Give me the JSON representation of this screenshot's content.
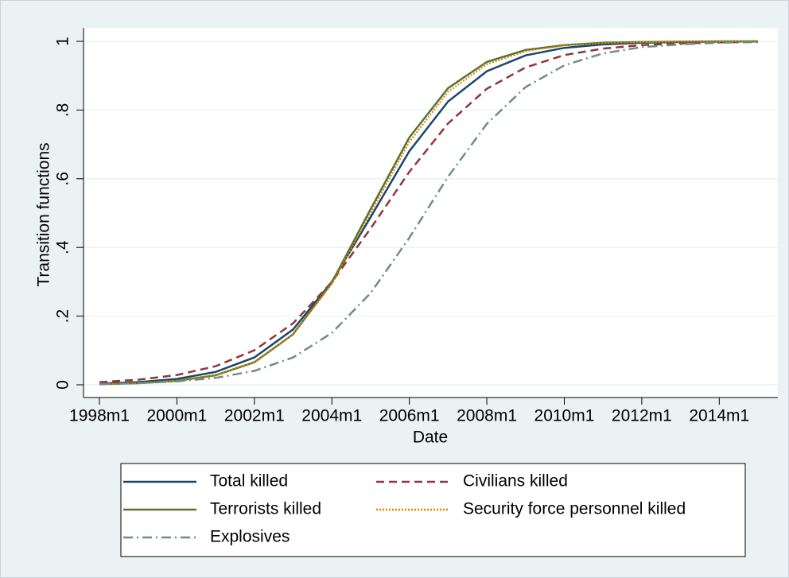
{
  "chart_data": {
    "type": "line",
    "xlabel": "Date",
    "ylabel": "Transition functions",
    "x": [
      1998,
      1999,
      2000,
      2001,
      2002,
      2003,
      2004,
      2005,
      2006,
      2007,
      2008,
      2009,
      2010,
      2011,
      2012,
      2013,
      2014,
      2015
    ],
    "series": [
      {
        "name": "Total killed",
        "color": "#1a476f",
        "style": "solid",
        "values": [
          0.0035,
          0.0078,
          0.0172,
          0.0374,
          0.0796,
          0.161,
          0.3,
          0.488,
          0.68,
          0.825,
          0.913,
          0.959,
          0.981,
          0.991,
          0.996,
          0.998,
          0.999,
          1.0
        ]
      },
      {
        "name": "Civilians killed",
        "color": "#90353b",
        "style": "dash",
        "values": [
          0.0076,
          0.0148,
          0.0284,
          0.0541,
          0.1006,
          0.179,
          0.299,
          0.455,
          0.62,
          0.761,
          0.862,
          0.924,
          0.96,
          0.979,
          0.989,
          0.994,
          0.997,
          0.9985
        ]
      },
      {
        "name": "Terrorists killed",
        "color": "#55752f",
        "style": "solid",
        "values": [
          0.0019,
          0.0047,
          0.0115,
          0.0278,
          0.0657,
          0.147,
          0.298,
          0.511,
          0.72,
          0.864,
          0.94,
          0.975,
          0.989,
          0.996,
          0.998,
          0.999,
          1.0,
          1.0
        ]
      },
      {
        "name": "Security force personnel killed",
        "color": "#e37e00",
        "style": "dot",
        "values": [
          0.0021,
          0.0051,
          0.0121,
          0.0288,
          0.0666,
          0.147,
          0.293,
          0.5,
          0.707,
          0.853,
          0.933,
          0.971,
          0.988,
          0.995,
          0.998,
          0.999,
          1.0,
          1.0
        ]
      },
      {
        "name": "Explosives",
        "color": "#6e8e84",
        "style": "dashdot",
        "values": [
          0.0024,
          0.0048,
          0.0099,
          0.0201,
          0.0404,
          0.0796,
          0.151,
          0.267,
          0.428,
          0.606,
          0.76,
          0.867,
          0.93,
          0.965,
          0.983,
          0.991,
          0.996,
          0.998
        ]
      }
    ],
    "xlim": [
      1998,
      2015
    ],
    "xticks": [
      {
        "value": 1998,
        "label": "1998m1"
      },
      {
        "value": 2000,
        "label": "2000m1"
      },
      {
        "value": 2002,
        "label": "2002m1"
      },
      {
        "value": 2004,
        "label": "2004m1"
      },
      {
        "value": 2006,
        "label": "2006m1"
      },
      {
        "value": 2008,
        "label": "2008m1"
      },
      {
        "value": 2010,
        "label": "2010m1"
      },
      {
        "value": 2012,
        "label": "2012m1"
      },
      {
        "value": 2014,
        "label": "2014m1"
      }
    ],
    "ylim": [
      0,
      1
    ],
    "yticks": [
      0,
      {
        "value": 0.2,
        "label": ".2"
      },
      {
        "value": 0.4,
        "label": ".4"
      },
      {
        "value": 0.6,
        "label": ".6"
      },
      {
        "value": 0.8,
        "label": ".8"
      },
      1
    ],
    "grid": true,
    "legend": "bottom"
  }
}
